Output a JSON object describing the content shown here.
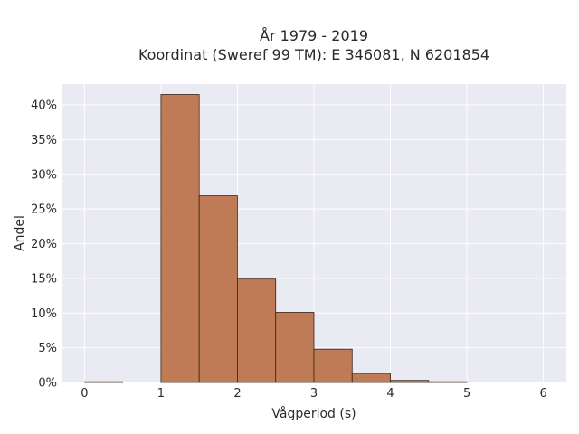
{
  "chart_data": {
    "type": "bar",
    "title_line1": "År 1979 - 2019",
    "title_line2": "Koordinat (Sweref 99 TM): E 346081, N 6201854",
    "xlabel": "Vågperiod (s)",
    "ylabel": "Andel",
    "xlim": [
      -0.3,
      6.3
    ],
    "ylim": [
      0,
      43
    ],
    "x_ticks": [
      0,
      1,
      2,
      3,
      4,
      5,
      6
    ],
    "y_ticks": [
      0,
      5,
      10,
      15,
      20,
      25,
      30,
      35,
      40
    ],
    "y_tick_labels": [
      "0%",
      "5%",
      "10%",
      "15%",
      "20%",
      "25%",
      "30%",
      "35%",
      "40%"
    ],
    "bin_width": 0.5,
    "bins": [
      {
        "x0": 0.0,
        "value": 0.1
      },
      {
        "x0": 0.5,
        "value": 0.0
      },
      {
        "x0": 1.0,
        "value": 41.5
      },
      {
        "x0": 1.5,
        "value": 26.9
      },
      {
        "x0": 2.0,
        "value": 14.9
      },
      {
        "x0": 2.5,
        "value": 10.1
      },
      {
        "x0": 3.0,
        "value": 4.8
      },
      {
        "x0": 3.5,
        "value": 1.3
      },
      {
        "x0": 4.0,
        "value": 0.3
      },
      {
        "x0": 4.5,
        "value": 0.1
      }
    ],
    "grid": true,
    "bar_color": "#bf7b55",
    "bar_edge_color": "#3a2416",
    "plot_bg": "#eaeaf2"
  }
}
